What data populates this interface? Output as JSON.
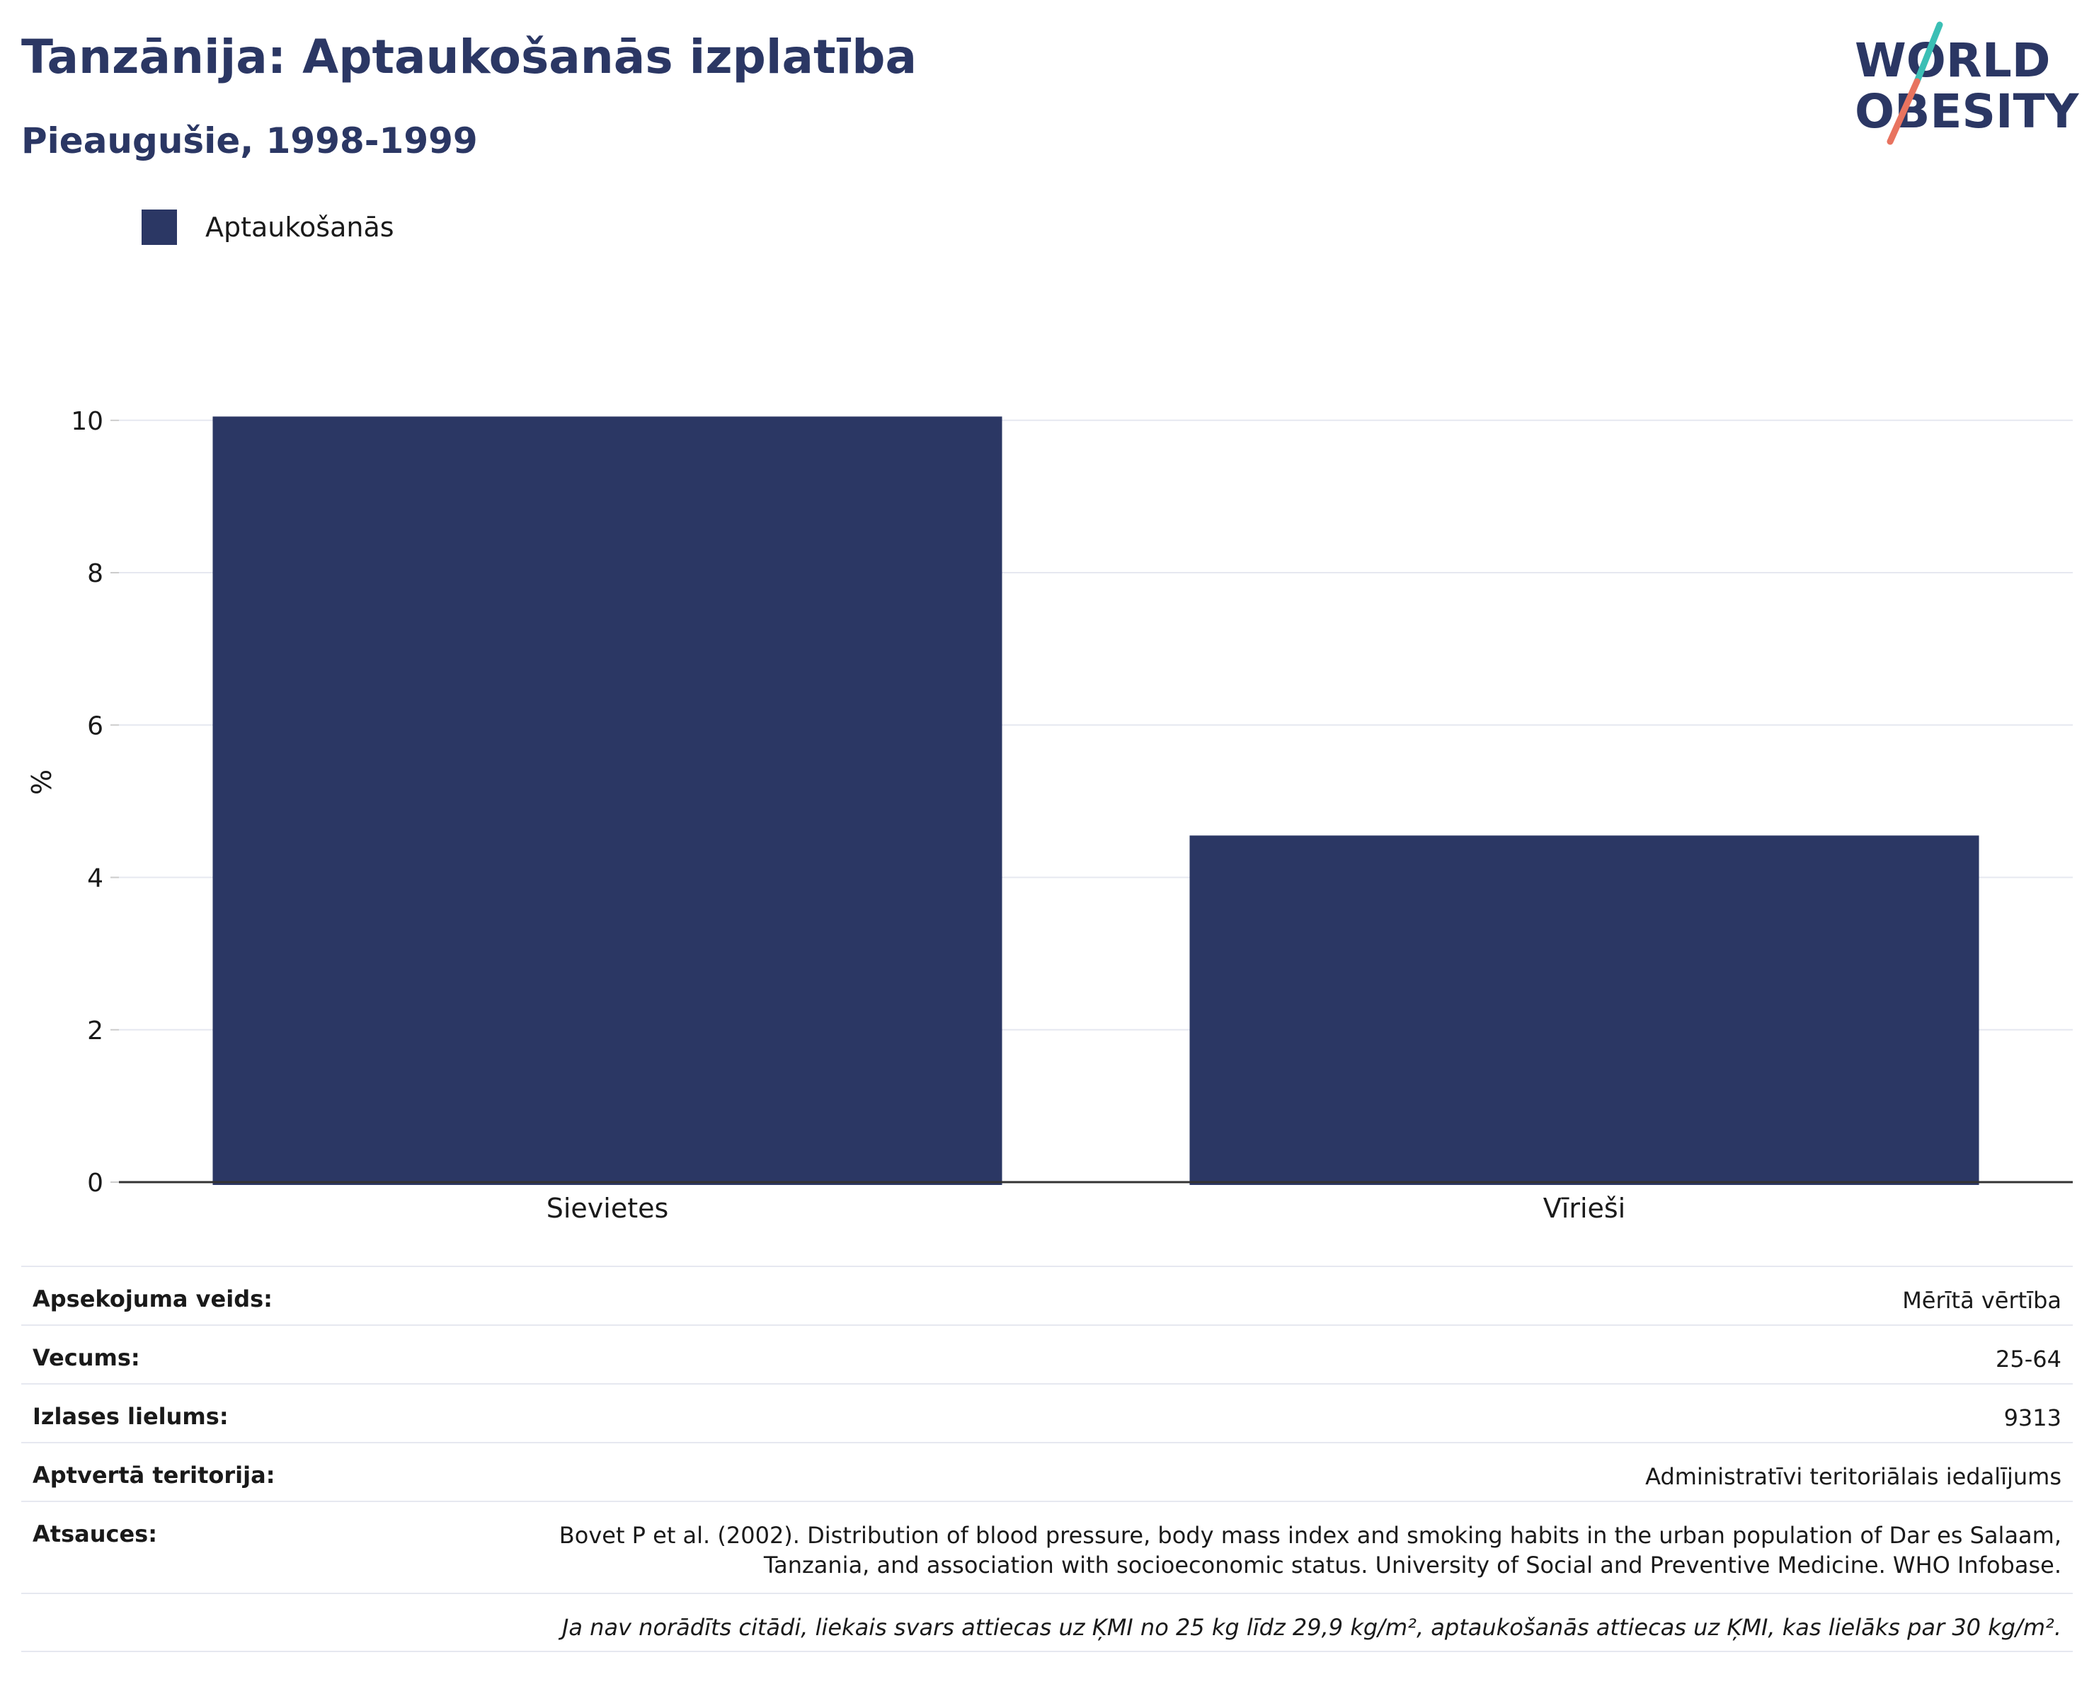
{
  "header": {
    "title": "Tanzānija: Aptaukošanās izplatība",
    "subtitle": "Pieaugušie, 1998-1999"
  },
  "logo": {
    "line1": "WORLD",
    "line2": "OBESITY",
    "colors": {
      "text": "#2b3764",
      "slash_top": "#3bbfb5",
      "slash_bottom": "#e8735f"
    }
  },
  "legend": {
    "label": "Aptaukošanās",
    "color": "#2b3764"
  },
  "chart_data": {
    "type": "bar",
    "categories": [
      "Sievietes",
      "Vīrieši"
    ],
    "series": [
      {
        "name": "Aptaukošanās",
        "values": [
          10.05,
          4.55
        ]
      }
    ],
    "ylabel": "%",
    "ylim": [
      0,
      10.5
    ],
    "yticks": [
      0,
      2,
      4,
      6,
      8,
      10
    ],
    "grid": true,
    "legend_position": "top-left",
    "bar_color": "#2b3764"
  },
  "info": {
    "rows": [
      {
        "label": "Apsekojuma veids:",
        "value": "Mērītā vērtība"
      },
      {
        "label": "Vecums:",
        "value": "25-64"
      },
      {
        "label": "Izlases lielums:",
        "value": "9313"
      },
      {
        "label": "Aptvertā teritorija:",
        "value": "Administratīvi teritoriālais iedalījums"
      }
    ],
    "references_label": "Atsauces:",
    "references_line1": "Bovet P et al. (2002). Distribution of blood pressure, body mass index and smoking habits in the urban population of Dar es Salaam,",
    "references_line2": "Tanzania, and association with socioeconomic status. University of Social and Preventive Medicine. WHO Infobase.",
    "note": "Ja nav norādīts citādi, liekais svars attiecas uz ĶMI no 25 kg līdz 29,9 kg/m², aptaukošanās attiecas uz ĶMI, kas lielāks par 30 kg/m²."
  }
}
